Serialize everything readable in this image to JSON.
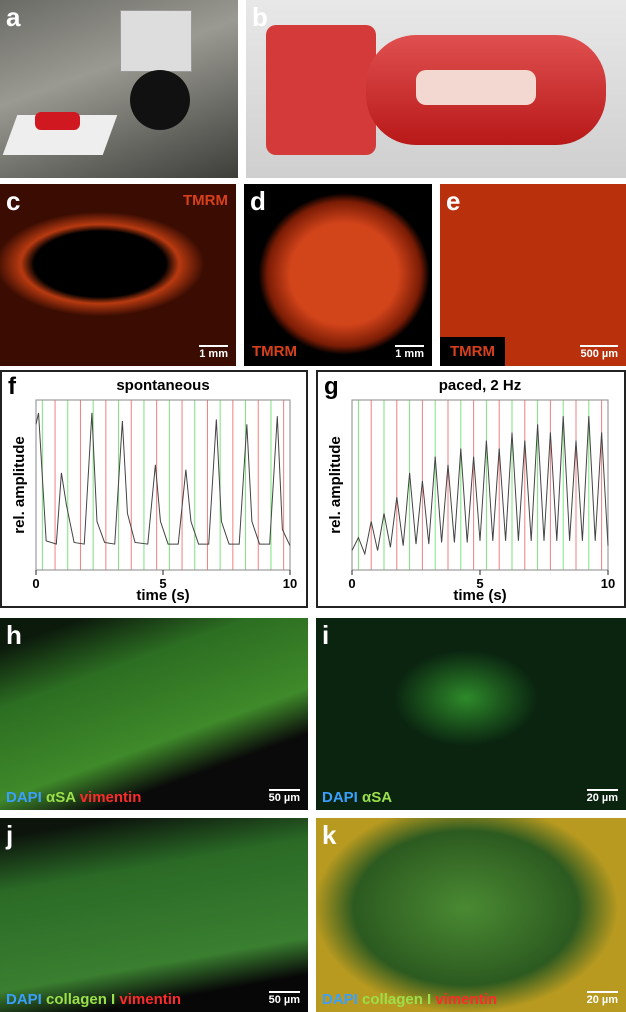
{
  "panels": {
    "a": {
      "letter": "a"
    },
    "b": {
      "letter": "b"
    },
    "c": {
      "letter": "c",
      "stain": "TMRM",
      "scale": "1 mm"
    },
    "d": {
      "letter": "d",
      "stain": "TMRM",
      "scale": "1 mm"
    },
    "e": {
      "letter": "e",
      "stain": "TMRM",
      "scale": "500 µm"
    },
    "h": {
      "letter": "h",
      "labels": [
        "DAPI",
        "αSA",
        "vimentin"
      ],
      "scale": "50 µm"
    },
    "i": {
      "letter": "i",
      "labels": [
        "DAPI",
        "αSA"
      ],
      "scale": "20 µm"
    },
    "j": {
      "letter": "j",
      "labels": [
        "DAPI",
        "collagen I",
        "vimentin"
      ],
      "scale": "50 µm"
    },
    "k": {
      "letter": "k",
      "labels": [
        "DAPI",
        "collagen I",
        "vimentin"
      ],
      "scale": "20 µm"
    }
  },
  "chart_data": [
    {
      "type": "line",
      "panel": "f",
      "title": "spontaneous",
      "xlabel": "time (s)",
      "ylabel": "rel. amplitude",
      "color": "#444444",
      "x": [
        0,
        0.1,
        0.4,
        0.8,
        1.0,
        1.2,
        1.5,
        1.9,
        2.2,
        2.4,
        2.7,
        3.1,
        3.4,
        3.6,
        3.9,
        4.4,
        4.7,
        4.9,
        5.2,
        5.6,
        5.9,
        6.1,
        6.4,
        6.8,
        7.1,
        7.3,
        7.6,
        8.0,
        8.3,
        8.5,
        8.8,
        9.2,
        9.5,
        9.7,
        10
      ],
      "values": [
        0.9,
        0.97,
        0.18,
        0.16,
        0.6,
        0.4,
        0.17,
        0.16,
        0.97,
        0.3,
        0.17,
        0.16,
        0.92,
        0.35,
        0.17,
        0.16,
        0.65,
        0.3,
        0.16,
        0.16,
        0.62,
        0.3,
        0.16,
        0.16,
        0.93,
        0.3,
        0.16,
        0.16,
        0.9,
        0.3,
        0.16,
        0.16,
        0.95,
        0.25,
        0.15
      ],
      "xlim": [
        0,
        10
      ],
      "ylim": [
        0,
        1.05
      ],
      "xticks": [
        0,
        5,
        10
      ]
    },
    {
      "type": "line",
      "panel": "g",
      "title": "paced, 2 Hz",
      "xlabel": "time (s)",
      "ylabel": "rel. amplitude",
      "color": "#444444",
      "x": [
        0,
        0.25,
        0.5,
        0.75,
        1,
        1.25,
        1.5,
        1.75,
        2,
        2.25,
        2.5,
        2.75,
        3,
        3.25,
        3.5,
        3.75,
        4,
        4.25,
        4.5,
        4.75,
        5,
        5.25,
        5.5,
        5.75,
        6,
        6.25,
        6.5,
        6.75,
        7,
        7.25,
        7.5,
        7.75,
        8,
        8.25,
        8.5,
        8.75,
        9,
        9.25,
        9.5,
        9.75,
        10
      ],
      "values": [
        0.12,
        0.2,
        0.1,
        0.3,
        0.12,
        0.35,
        0.14,
        0.45,
        0.15,
        0.6,
        0.16,
        0.55,
        0.16,
        0.7,
        0.17,
        0.65,
        0.17,
        0.75,
        0.17,
        0.7,
        0.18,
        0.8,
        0.18,
        0.75,
        0.18,
        0.85,
        0.18,
        0.8,
        0.18,
        0.9,
        0.18,
        0.85,
        0.18,
        0.95,
        0.18,
        0.8,
        0.18,
        0.95,
        0.18,
        0.85,
        0.15
      ],
      "xlim": [
        0,
        10
      ],
      "ylim": [
        0,
        1.05
      ],
      "xticks": [
        0,
        5,
        10
      ]
    }
  ]
}
